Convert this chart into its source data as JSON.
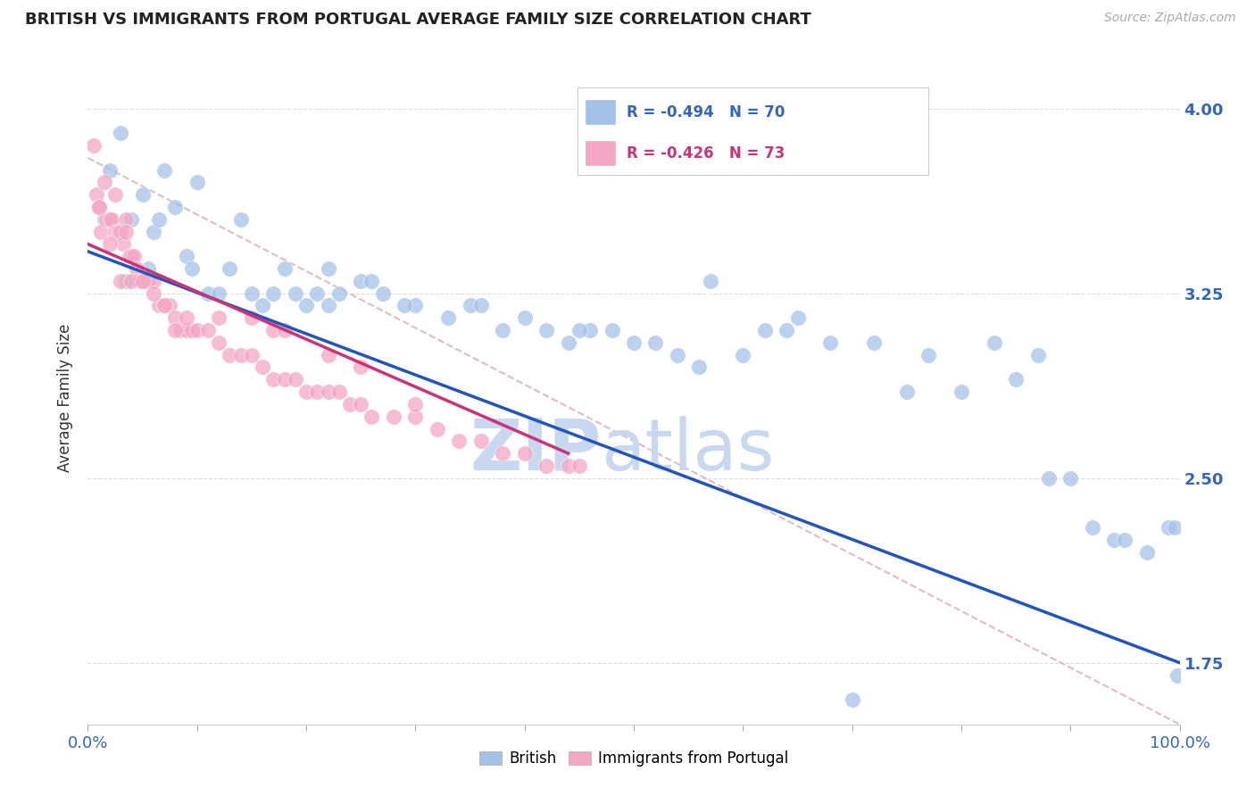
{
  "title": "BRITISH VS IMMIGRANTS FROM PORTUGAL AVERAGE FAMILY SIZE CORRELATION CHART",
  "source": "Source: ZipAtlas.com",
  "ylabel": "Average Family Size",
  "yticks": [
    1.75,
    2.5,
    3.25,
    4.0
  ],
  "ytick_labels": [
    "1.75",
    "2.50",
    "3.25",
    "4.00"
  ],
  "legend_r_british": "R = -0.494",
  "legend_n_british": "N = 70",
  "legend_r_portugal": "R = -0.426",
  "legend_n_portugal": "N = 73",
  "british_color": "#a4c2e8",
  "portugal_color": "#f4a7c3",
  "british_line_color": "#2255bb",
  "portugal_line_color": "#cc3377",
  "diagonal_color": "#ddaaaa",
  "watermark_zip_color": "#c8d8f0",
  "watermark_atlas_color": "#c8d8f0",
  "british_x": [
    1.5,
    2.0,
    3.0,
    4.0,
    5.0,
    5.5,
    6.0,
    7.0,
    8.0,
    9.0,
    10.0,
    11.0,
    12.0,
    13.0,
    14.0,
    15.0,
    16.0,
    17.0,
    18.0,
    19.0,
    20.0,
    21.0,
    22.0,
    23.0,
    25.0,
    27.0,
    30.0,
    33.0,
    35.0,
    38.0,
    40.0,
    42.0,
    44.0,
    46.0,
    48.0,
    50.0,
    52.0,
    54.0,
    56.0,
    57.0,
    60.0,
    62.0,
    64.0,
    65.0,
    68.0,
    70.0,
    72.0,
    75.0,
    77.0,
    80.0,
    83.0,
    85.0,
    87.0,
    88.0,
    90.0,
    92.0,
    94.0,
    95.0,
    97.0,
    99.0,
    99.5,
    99.8,
    3.5,
    6.5,
    9.5,
    22.0,
    26.0,
    29.0,
    36.0,
    45.0
  ],
  "british_y": [
    3.55,
    3.75,
    3.9,
    3.55,
    3.65,
    3.35,
    3.5,
    3.75,
    3.6,
    3.4,
    3.7,
    3.25,
    3.25,
    3.35,
    3.55,
    3.25,
    3.2,
    3.25,
    3.35,
    3.25,
    3.2,
    3.25,
    3.2,
    3.25,
    3.3,
    3.25,
    3.2,
    3.15,
    3.2,
    3.1,
    3.15,
    3.1,
    3.05,
    3.1,
    3.1,
    3.05,
    3.05,
    3.0,
    2.95,
    3.3,
    3.0,
    3.1,
    3.1,
    3.15,
    3.05,
    1.6,
    3.05,
    2.85,
    3.0,
    2.85,
    3.05,
    2.9,
    3.0,
    2.5,
    2.5,
    2.3,
    2.25,
    2.25,
    2.2,
    2.3,
    2.3,
    1.7,
    3.3,
    3.55,
    3.35,
    3.35,
    3.3,
    3.2,
    3.2,
    3.1
  ],
  "portugal_x": [
    0.5,
    0.8,
    1.0,
    1.2,
    1.5,
    1.7,
    2.0,
    2.2,
    2.5,
    2.8,
    3.0,
    3.2,
    3.5,
    3.8,
    4.0,
    4.2,
    4.5,
    4.8,
    5.0,
    5.5,
    6.0,
    6.5,
    7.0,
    7.5,
    8.0,
    8.5,
    9.0,
    9.5,
    10.0,
    11.0,
    12.0,
    13.0,
    14.0,
    15.0,
    16.0,
    17.0,
    18.0,
    19.0,
    20.0,
    21.0,
    22.0,
    23.0,
    24.0,
    25.0,
    26.0,
    28.0,
    30.0,
    32.0,
    34.0,
    36.0,
    38.0,
    40.0,
    42.0,
    44.0,
    45.0,
    1.0,
    2.0,
    3.0,
    4.0,
    5.0,
    6.0,
    7.0,
    8.0,
    9.0,
    2.5,
    3.5,
    12.0,
    15.0,
    17.0,
    18.0,
    22.0,
    25.0,
    30.0
  ],
  "portugal_y": [
    3.85,
    3.65,
    3.6,
    3.5,
    3.7,
    3.55,
    3.55,
    3.55,
    3.5,
    3.5,
    3.5,
    3.45,
    3.55,
    3.4,
    3.4,
    3.4,
    3.35,
    3.3,
    3.3,
    3.3,
    3.3,
    3.2,
    3.2,
    3.2,
    3.15,
    3.1,
    3.1,
    3.1,
    3.1,
    3.1,
    3.05,
    3.0,
    3.0,
    3.0,
    2.95,
    2.9,
    2.9,
    2.9,
    2.85,
    2.85,
    2.85,
    2.85,
    2.8,
    2.8,
    2.75,
    2.75,
    2.75,
    2.7,
    2.65,
    2.65,
    2.6,
    2.6,
    2.55,
    2.55,
    2.55,
    3.6,
    3.45,
    3.3,
    3.3,
    3.3,
    3.25,
    3.2,
    3.1,
    3.15,
    3.65,
    3.5,
    3.15,
    3.15,
    3.1,
    3.1,
    3.0,
    2.95,
    2.8
  ],
  "xlim": [
    0,
    100
  ],
  "ylim": [
    1.5,
    4.15
  ],
  "british_trend_x0": 0,
  "british_trend_y0": 3.42,
  "british_trend_x1": 100,
  "british_trend_y1": 1.75,
  "portugal_trend_x0": 0,
  "portugal_trend_y0": 3.45,
  "portugal_trend_x1": 44,
  "portugal_trend_y1": 2.6,
  "diag_x0": 0,
  "diag_y0": 3.8,
  "diag_x1": 100,
  "diag_y1": 1.5
}
